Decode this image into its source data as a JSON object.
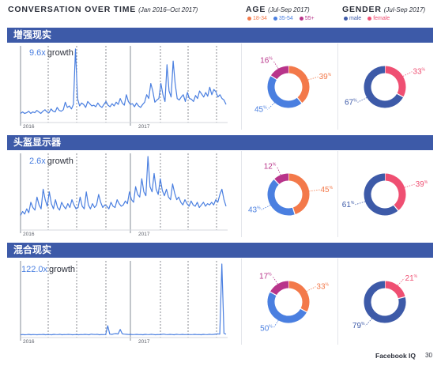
{
  "header": {
    "title": "CONVERSATION OVER TIME",
    "subtitle": "(Jan 2016–Oct 2017)",
    "age_title": "AGE",
    "age_subtitle": "(Jul-Sep 2017)",
    "gender_title": "GENDER",
    "gender_subtitle": "(Jul-Sep 2017)"
  },
  "legends": {
    "age": [
      {
        "label": "18-34",
        "color": "#f3794a"
      },
      {
        "label": "35-54",
        "color": "#4a7fe0"
      },
      {
        "label": "55+",
        "color": "#b8348a"
      }
    ],
    "gender": [
      {
        "label": "male",
        "color": "#3d5aa8"
      },
      {
        "label": "female",
        "color": "#ef4f72"
      }
    ]
  },
  "footer": {
    "brand": "Facebook IQ",
    "page": "30"
  },
  "chart_data": [
    {
      "type": "line",
      "topic": "增强现实",
      "growth_value": "9.6x",
      "growth_word": "growth",
      "x_ticks": [
        "2016",
        "2017"
      ],
      "values": [
        1.0,
        1.2,
        1.0,
        1.1,
        1.3,
        1.0,
        1.2,
        1.1,
        1.4,
        1.2,
        1.0,
        1.3,
        1.5,
        1.2,
        1.1,
        1.6,
        1.3,
        1.2,
        1.8,
        1.4,
        1.3,
        1.5,
        2.5,
        1.8,
        2.0,
        1.6,
        2.2,
        9.6,
        3.0,
        2.0,
        2.4,
        2.2,
        1.8,
        2.6,
        2.3,
        2.0,
        2.1,
        1.9,
        2.4,
        2.0,
        1.8,
        2.2,
        2.6,
        2.1,
        1.9,
        2.3,
        2.0,
        2.5,
        2.2,
        3.0,
        2.4,
        2.1,
        3.5,
        2.6,
        2.2,
        2.3,
        1.9,
        2.4,
        2.0,
        1.8,
        2.2,
        2.5,
        3.5,
        3.0,
        5.0,
        4.0,
        2.5,
        2.8,
        3.0,
        5.0,
        3.5,
        2.6,
        7.5,
        4.0,
        3.2,
        8.0,
        5.0,
        3.0,
        2.8,
        3.2,
        3.5,
        2.6,
        3.8,
        3.0,
        2.9,
        2.6,
        3.4,
        3.0,
        4.0,
        3.6,
        3.2,
        3.8,
        3.3,
        4.5,
        3.5,
        4.2,
        3.9,
        3.2,
        3.5,
        3.0,
        2.8,
        2.2
      ]
    },
    {
      "type": "line",
      "topic": "头盔显示器",
      "growth_value": "2.6x",
      "growth_word": "growth",
      "x_ticks": [
        "2016",
        "2017"
      ],
      "values": [
        1.0,
        1.3,
        1.1,
        1.5,
        1.2,
        2.0,
        1.6,
        1.4,
        2.4,
        1.8,
        1.5,
        3.0,
        2.2,
        1.7,
        2.8,
        1.9,
        1.5,
        2.2,
        1.6,
        1.4,
        2.0,
        1.7,
        1.5,
        1.9,
        1.6,
        2.2,
        1.8,
        1.5,
        1.6,
        2.4,
        1.7,
        1.5,
        2.8,
        1.8,
        1.5,
        1.9,
        1.6,
        1.8,
        2.6,
        2.0,
        1.6,
        1.8,
        1.7,
        1.5,
        2.0,
        1.7,
        1.6,
        2.2,
        1.9,
        1.7,
        1.8,
        2.1,
        1.9,
        2.8,
        2.2,
        2.0,
        3.2,
        2.6,
        2.4,
        3.8,
        2.8,
        2.5,
        5.5,
        3.2,
        2.8,
        4.2,
        3.0,
        2.6,
        3.8,
        2.9,
        2.5,
        3.0,
        2.4,
        2.2,
        3.4,
        2.7,
        2.2,
        2.4,
        2.0,
        1.8,
        2.2,
        1.9,
        1.7,
        2.1,
        1.8,
        1.7,
        2.0,
        1.6,
        1.8,
        2.0,
        1.7,
        1.9,
        1.8,
        2.0,
        1.8,
        2.2,
        2.0,
        2.6,
        3.0,
        2.2,
        1.7
      ]
    },
    {
      "type": "line",
      "topic": "混合现实",
      "growth_value": "122.0x",
      "growth_word": "growth",
      "x_ticks": [
        "2016",
        "2017"
      ],
      "values": [
        1.0,
        1.2,
        1.0,
        1.1,
        1.3,
        1.0,
        1.2,
        1.1,
        1.0,
        1.2,
        1.1,
        1.3,
        1.0,
        1.2,
        1.1,
        1.0,
        1.3,
        1.2,
        1.1,
        1.4,
        1.0,
        1.2,
        1.1,
        1.3,
        1.2,
        1.0,
        1.1,
        1.2,
        1.0,
        1.2,
        1.1,
        1.3,
        1.2,
        1.0,
        1.5,
        1.3,
        1.2,
        1.4,
        1.0,
        1.2,
        1.1,
        1.2,
        8.5,
        1.5,
        1.3,
        1.8,
        2.0,
        1.6,
        5.5,
        1.8,
        1.5,
        1.4,
        1.2,
        1.3,
        1.1,
        1.2,
        1.3,
        1.1,
        1.2,
        1.0,
        1.3,
        1.2,
        1.1,
        1.4,
        1.2,
        1.0,
        1.2,
        1.1,
        1.3,
        1.5,
        1.2,
        1.1,
        1.3,
        1.2,
        1.0,
        1.4,
        1.2,
        1.1,
        1.3,
        1.1,
        1.2,
        1.2,
        1.1,
        1.2,
        1.3,
        1.1,
        1.2,
        1.0,
        1.3,
        1.2,
        1.1,
        1.4,
        1.2,
        1.3,
        1.6,
        1.8,
        1.5,
        60.0,
        2.2,
        1.5
      ]
    }
  ],
  "donuts": [
    {
      "topic": "增强现实",
      "age": [
        {
          "name": "18-34",
          "value": 39,
          "label": "39"
        },
        {
          "name": "35-54",
          "value": 45,
          "label": "45"
        },
        {
          "name": "55+",
          "value": 16,
          "label": "16"
        }
      ],
      "gender": [
        {
          "name": "female",
          "value": 33,
          "label": "33"
        },
        {
          "name": "male",
          "value": 67,
          "label": "67"
        }
      ]
    },
    {
      "topic": "头盔显示器",
      "age": [
        {
          "name": "18-34",
          "value": 45,
          "label": "45"
        },
        {
          "name": "35-54",
          "value": 43,
          "label": "43"
        },
        {
          "name": "55+",
          "value": 12,
          "label": "12"
        }
      ],
      "gender": [
        {
          "name": "female",
          "value": 39,
          "label": "39"
        },
        {
          "name": "male",
          "value": 61,
          "label": "61"
        }
      ]
    },
    {
      "topic": "混合现实",
      "age": [
        {
          "name": "18-34",
          "value": 33,
          "label": "33"
        },
        {
          "name": "35-54",
          "value": 50,
          "label": "50"
        },
        {
          "name": "55+",
          "value": 17,
          "label": "17"
        }
      ],
      "gender": [
        {
          "name": "female",
          "value": 21,
          "label": "21"
        },
        {
          "name": "male",
          "value": 79,
          "label": "79"
        }
      ]
    }
  ]
}
